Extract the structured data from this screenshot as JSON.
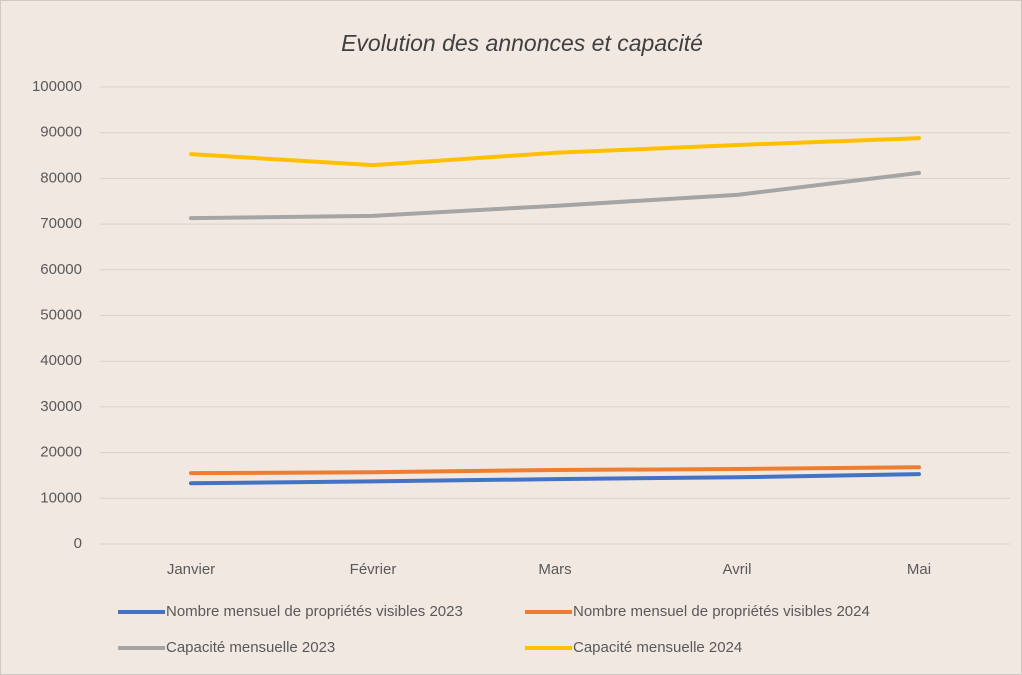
{
  "chart_data": {
    "type": "line",
    "title": "Evolution des annonces et capacité",
    "categories": [
      "Janvier",
      "Février",
      "Mars",
      "Avril",
      "Mai"
    ],
    "series": [
      {
        "name": "Nombre mensuel de propriétés visibles 2023",
        "color": "#4472c4",
        "values": [
          13300,
          13700,
          14200,
          14600,
          15300
        ]
      },
      {
        "name": "Nombre mensuel de propriétés visibles 2024",
        "color": "#ed7d31",
        "values": [
          15500,
          15700,
          16200,
          16400,
          16800
        ]
      },
      {
        "name": "Capacité mensuelle 2023",
        "color": "#a5a5a5",
        "values": [
          71300,
          71800,
          74000,
          76400,
          81200
        ]
      },
      {
        "name": "Capacité mensuelle 2024",
        "color": "#ffc000",
        "values": [
          85300,
          82900,
          85600,
          87300,
          88800
        ]
      }
    ],
    "ylim": [
      0,
      100000
    ],
    "yticks": [
      0,
      10000,
      20000,
      30000,
      40000,
      50000,
      60000,
      70000,
      80000,
      90000,
      100000
    ],
    "grid": true,
    "legend": "bottom"
  }
}
